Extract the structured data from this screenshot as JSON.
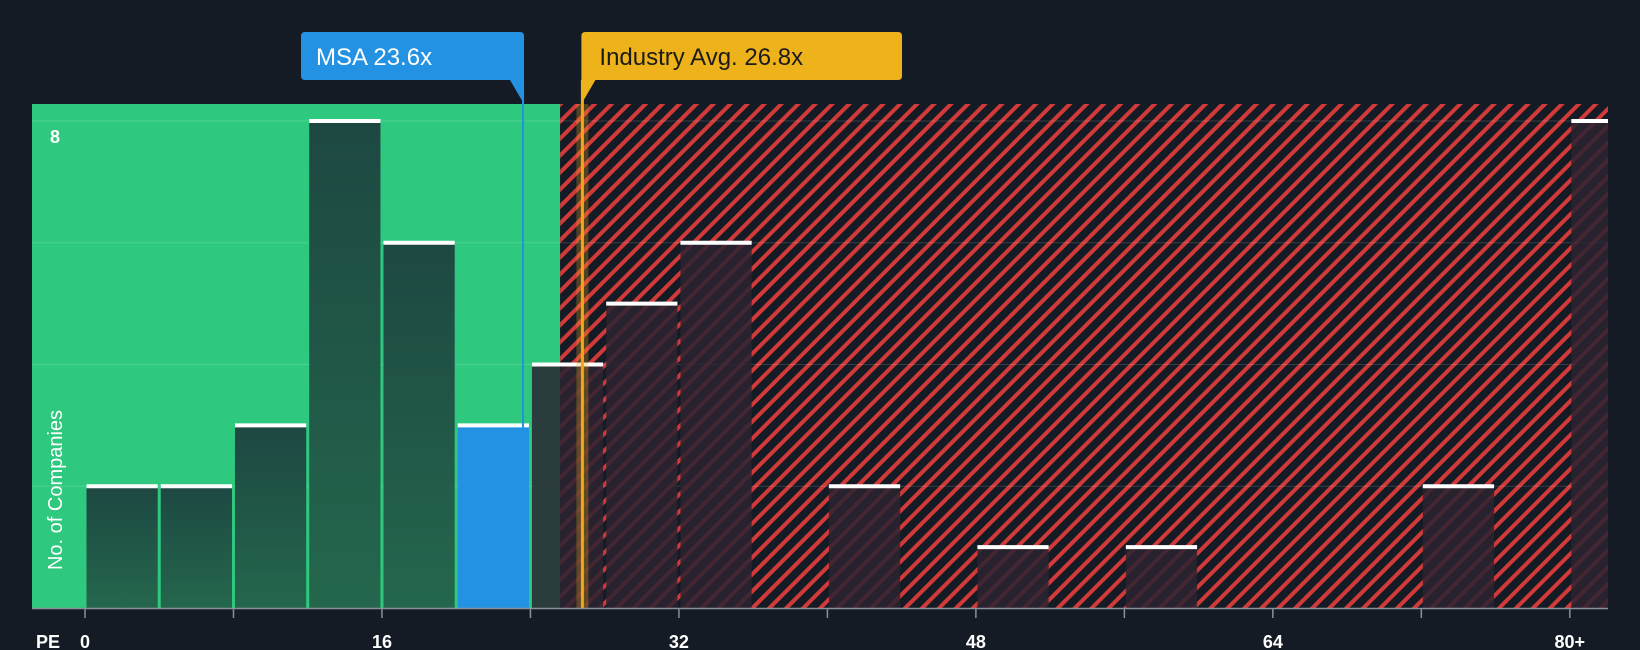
{
  "chart_data": {
    "type": "histogram",
    "title": "",
    "xlabel": "PE",
    "ylabel": "No. of Companies",
    "x_ticks": [
      "0",
      "16",
      "32",
      "48",
      "64",
      "80+"
    ],
    "x_tick_values": [
      0,
      16,
      32,
      48,
      64,
      80
    ],
    "y_tick_label": "8",
    "ylim": [
      0,
      8.25
    ],
    "bin_width": 4,
    "bins": [
      {
        "start": 0,
        "end": 4,
        "count": 2
      },
      {
        "start": 4,
        "end": 8,
        "count": 2
      },
      {
        "start": 8,
        "end": 12,
        "count": 3
      },
      {
        "start": 12,
        "end": 16,
        "count": 8
      },
      {
        "start": 16,
        "end": 20,
        "count": 6
      },
      {
        "start": 20,
        "end": 24,
        "count": 3,
        "highlight": true
      },
      {
        "start": 24,
        "end": 28,
        "count": 4
      },
      {
        "start": 28,
        "end": 32,
        "count": 5
      },
      {
        "start": 32,
        "end": 36,
        "count": 6
      },
      {
        "start": 40,
        "end": 44,
        "count": 2
      },
      {
        "start": 48,
        "end": 52,
        "count": 1
      },
      {
        "start": 56,
        "end": 60,
        "count": 1
      },
      {
        "start": 72,
        "end": 76,
        "count": 2
      },
      {
        "start": 80,
        "end": 84,
        "count": 8
      }
    ],
    "company": {
      "ticker": "MSA",
      "value": 23.6,
      "label": "MSA 23.6x"
    },
    "industry_avg": {
      "value": 26.8,
      "label": "Industry Avg. 26.8x"
    },
    "fair_region_end": 25.6,
    "colors": {
      "background": "#151b24",
      "fair_zone": "#2ec97e",
      "overvalued_zone": "#d23a3a",
      "bar_fair": "#1e4a40",
      "bar_over": "#2a2330",
      "bar_highlight": "#2392e3",
      "company_line": "#2392e3",
      "industry_line": "#f0a818",
      "industry_callout": "#eeb31a",
      "cap": "#ffffff",
      "grid": "#ffffff"
    }
  }
}
